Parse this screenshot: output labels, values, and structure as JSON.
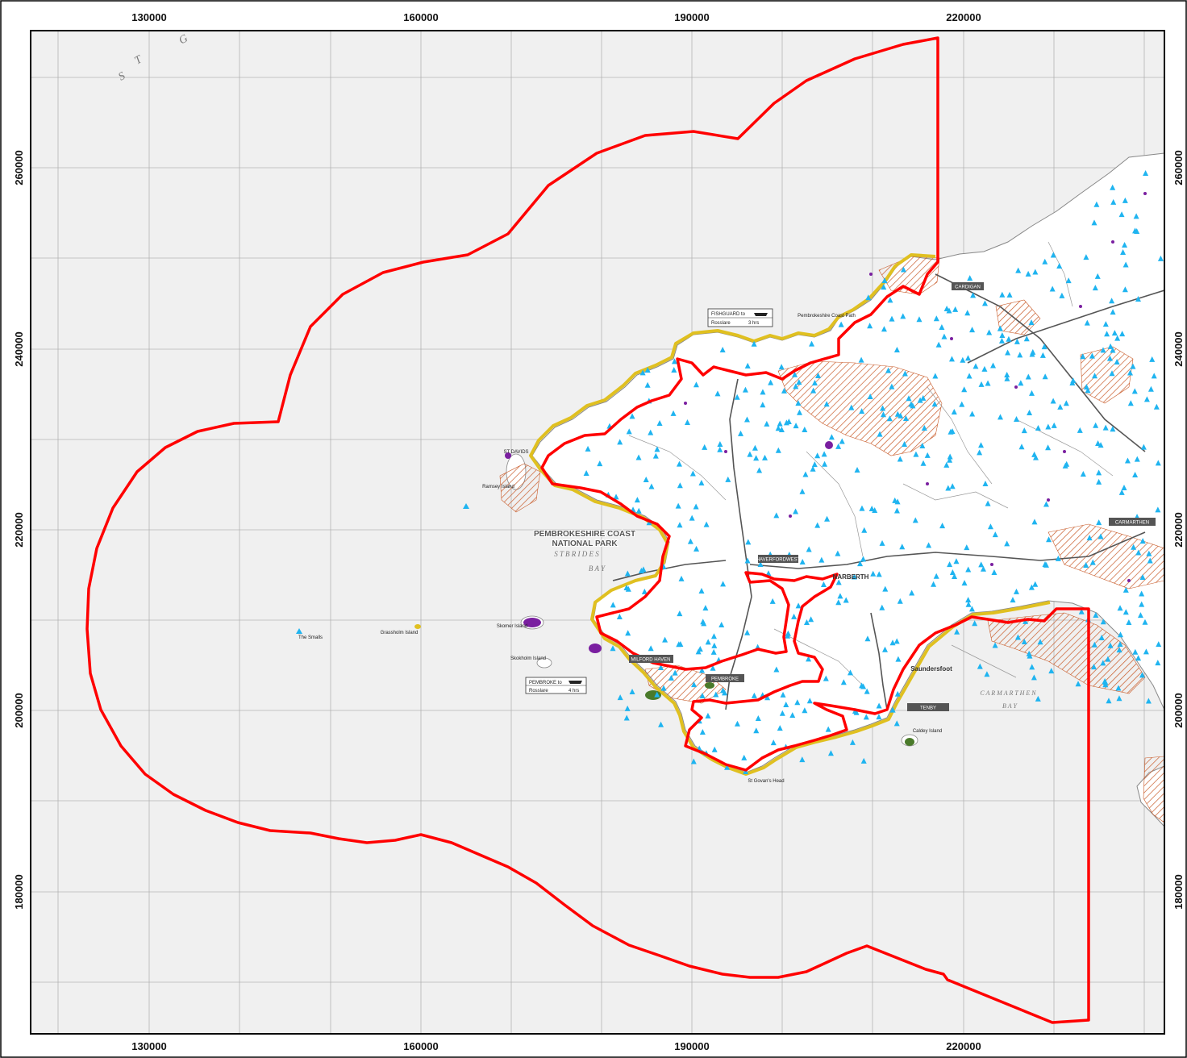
{
  "map": {
    "colors": {
      "sea": "#f0f0f0",
      "land": "#ffffff",
      "boundary": "#ff0000",
      "coast_buffer": "#e0c020",
      "hatch": "#c85a28",
      "heritage_points": "#1fb4f0",
      "designations": "#7a1fa0",
      "grid": "#b4b4b4"
    },
    "eastings": [
      "130000",
      "160000",
      "190000",
      "220000"
    ],
    "northings": [
      "260000",
      "240000",
      "220000",
      "200000",
      "180000"
    ],
    "labels": {
      "national_park_line1": "PEMBROKESHIRE COAST",
      "national_park_line2": "NATIONAL PARK",
      "st_brides": "S T   B R I D E S",
      "bay": "B A Y",
      "carmarthen": "C A R M A R T H E N",
      "carmarthen_bay": "B A Y",
      "sea_corner": "S T   G"
    },
    "places": {
      "fishguard": "FISHGUARD",
      "haverfordwest": "HAVERFORDWEST",
      "narberth": "NARBERTH",
      "pembroke": "PEMBROKE",
      "tenby": "TENBY",
      "saundersfoot": "Saundersfoot",
      "st_davids": "ST DAVIDS",
      "milford_haven": "MILFORD HAVEN",
      "pembroke_dock": "PEMBROKE DOCK",
      "cardigan": "CARDIGAN",
      "carmarthen_town": "CARMARTHEN",
      "the_smalls": "The Smalls",
      "grassholm": "Grassholm Island",
      "skokholm": "Skokholm Island",
      "skomer": "Skomer Island",
      "ramsey": "Ramsey Island",
      "coast_path": "Pembrokeshire Coast Path",
      "st_govans": "St Govan's Head",
      "caldey": "Caldey Island"
    },
    "ferry_boxes": [
      {
        "title": "FISHGUARD to",
        "dest": "Rosslare",
        "time": "3 hrs"
      },
      {
        "title": "PEMBROKE to",
        "dest": "Rosslare",
        "time": "4 hrs"
      }
    ]
  }
}
